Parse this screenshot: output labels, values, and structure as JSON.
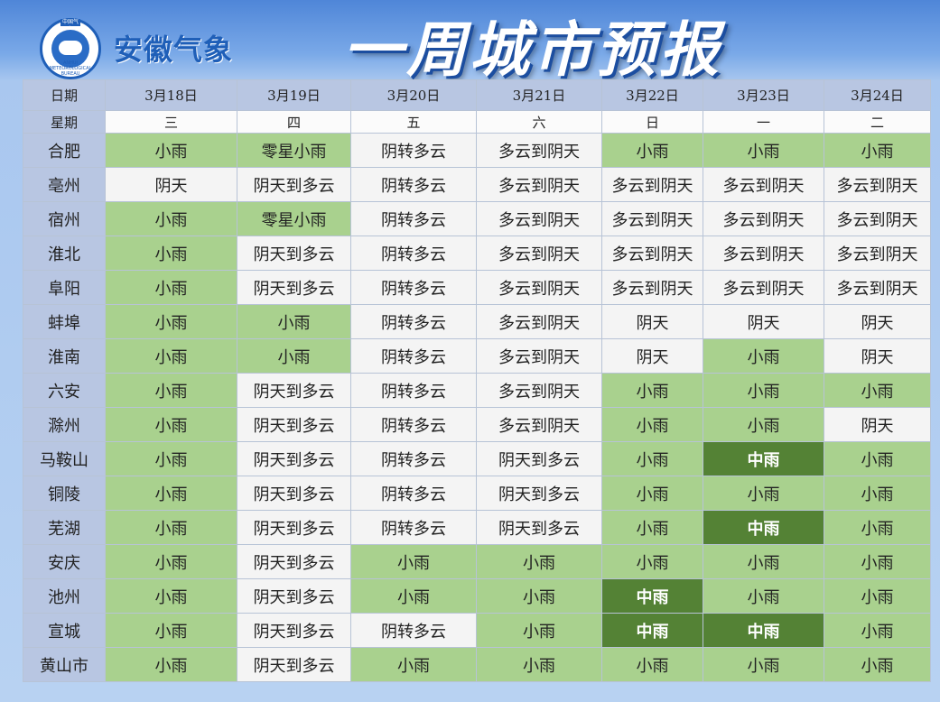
{
  "brand": "安徽气象",
  "title": "一周城市预报",
  "logo": {
    "top_text": "中国气象",
    "ring_text": "ANHUI METEOROLOGICAL BUREAU"
  },
  "colors": {
    "light_rain": "#a9d18e",
    "moderate_rain": "#548235",
    "other": "#f4f4f4",
    "header": "#b8c6e2"
  },
  "table": {
    "date_label": "日期",
    "week_label": "星期",
    "dates": [
      "3月18日",
      "3月19日",
      "3月20日",
      "3月21日",
      "3月22日",
      "3月23日",
      "3月24日"
    ],
    "weekdays": [
      "三",
      "四",
      "五",
      "六",
      "日",
      "一",
      "二"
    ],
    "rows": [
      {
        "city": "合肥",
        "cells": [
          [
            "小雨",
            "l"
          ],
          [
            "零星小雨",
            "l"
          ],
          [
            "阴转多云",
            "w"
          ],
          [
            "多云到阴天",
            "w"
          ],
          [
            "小雨",
            "l"
          ],
          [
            "小雨",
            "l"
          ],
          [
            "小雨",
            "l"
          ]
        ]
      },
      {
        "city": "亳州",
        "cells": [
          [
            "阴天",
            "w"
          ],
          [
            "阴天到多云",
            "w"
          ],
          [
            "阴转多云",
            "w"
          ],
          [
            "多云到阴天",
            "w"
          ],
          [
            "多云到阴天",
            "w"
          ],
          [
            "多云到阴天",
            "w"
          ],
          [
            "多云到阴天",
            "w"
          ]
        ]
      },
      {
        "city": "宿州",
        "cells": [
          [
            "小雨",
            "l"
          ],
          [
            "零星小雨",
            "l"
          ],
          [
            "阴转多云",
            "w"
          ],
          [
            "多云到阴天",
            "w"
          ],
          [
            "多云到阴天",
            "w"
          ],
          [
            "多云到阴天",
            "w"
          ],
          [
            "多云到阴天",
            "w"
          ]
        ]
      },
      {
        "city": "淮北",
        "cells": [
          [
            "小雨",
            "l"
          ],
          [
            "阴天到多云",
            "w"
          ],
          [
            "阴转多云",
            "w"
          ],
          [
            "多云到阴天",
            "w"
          ],
          [
            "多云到阴天",
            "w"
          ],
          [
            "多云到阴天",
            "w"
          ],
          [
            "多云到阴天",
            "w"
          ]
        ]
      },
      {
        "city": "阜阳",
        "cells": [
          [
            "小雨",
            "l"
          ],
          [
            "阴天到多云",
            "w"
          ],
          [
            "阴转多云",
            "w"
          ],
          [
            "多云到阴天",
            "w"
          ],
          [
            "多云到阴天",
            "w"
          ],
          [
            "多云到阴天",
            "w"
          ],
          [
            "多云到阴天",
            "w"
          ]
        ]
      },
      {
        "city": "蚌埠",
        "cells": [
          [
            "小雨",
            "l"
          ],
          [
            "小雨",
            "l"
          ],
          [
            "阴转多云",
            "w"
          ],
          [
            "多云到阴天",
            "w"
          ],
          [
            "阴天",
            "w"
          ],
          [
            "阴天",
            "w"
          ],
          [
            "阴天",
            "w"
          ]
        ]
      },
      {
        "city": "淮南",
        "cells": [
          [
            "小雨",
            "l"
          ],
          [
            "小雨",
            "l"
          ],
          [
            "阴转多云",
            "w"
          ],
          [
            "多云到阴天",
            "w"
          ],
          [
            "阴天",
            "w"
          ],
          [
            "小雨",
            "l"
          ],
          [
            "阴天",
            "w"
          ]
        ]
      },
      {
        "city": "六安",
        "cells": [
          [
            "小雨",
            "l"
          ],
          [
            "阴天到多云",
            "w"
          ],
          [
            "阴转多云",
            "w"
          ],
          [
            "多云到阴天",
            "w"
          ],
          [
            "小雨",
            "l"
          ],
          [
            "小雨",
            "l"
          ],
          [
            "小雨",
            "l"
          ]
        ]
      },
      {
        "city": "滁州",
        "cells": [
          [
            "小雨",
            "l"
          ],
          [
            "阴天到多云",
            "w"
          ],
          [
            "阴转多云",
            "w"
          ],
          [
            "多云到阴天",
            "w"
          ],
          [
            "小雨",
            "l"
          ],
          [
            "小雨",
            "l"
          ],
          [
            "阴天",
            "w"
          ]
        ]
      },
      {
        "city": "马鞍山",
        "cells": [
          [
            "小雨",
            "l"
          ],
          [
            "阴天到多云",
            "w"
          ],
          [
            "阴转多云",
            "w"
          ],
          [
            "阴天到多云",
            "w"
          ],
          [
            "小雨",
            "l"
          ],
          [
            "中雨",
            "d"
          ],
          [
            "小雨",
            "l"
          ]
        ]
      },
      {
        "city": "铜陵",
        "cells": [
          [
            "小雨",
            "l"
          ],
          [
            "阴天到多云",
            "w"
          ],
          [
            "阴转多云",
            "w"
          ],
          [
            "阴天到多云",
            "w"
          ],
          [
            "小雨",
            "l"
          ],
          [
            "小雨",
            "l"
          ],
          [
            "小雨",
            "l"
          ]
        ]
      },
      {
        "city": "芜湖",
        "cells": [
          [
            "小雨",
            "l"
          ],
          [
            "阴天到多云",
            "w"
          ],
          [
            "阴转多云",
            "w"
          ],
          [
            "阴天到多云",
            "w"
          ],
          [
            "小雨",
            "l"
          ],
          [
            "中雨",
            "d"
          ],
          [
            "小雨",
            "l"
          ]
        ]
      },
      {
        "city": "安庆",
        "cells": [
          [
            "小雨",
            "l"
          ],
          [
            "阴天到多云",
            "w"
          ],
          [
            "小雨",
            "l"
          ],
          [
            "小雨",
            "l"
          ],
          [
            "小雨",
            "l"
          ],
          [
            "小雨",
            "l"
          ],
          [
            "小雨",
            "l"
          ]
        ]
      },
      {
        "city": "池州",
        "cells": [
          [
            "小雨",
            "l"
          ],
          [
            "阴天到多云",
            "w"
          ],
          [
            "小雨",
            "l"
          ],
          [
            "小雨",
            "l"
          ],
          [
            "中雨",
            "d"
          ],
          [
            "小雨",
            "l"
          ],
          [
            "小雨",
            "l"
          ]
        ]
      },
      {
        "city": "宣城",
        "cells": [
          [
            "小雨",
            "l"
          ],
          [
            "阴天到多云",
            "w"
          ],
          [
            "阴转多云",
            "w"
          ],
          [
            "小雨",
            "l"
          ],
          [
            "中雨",
            "d"
          ],
          [
            "中雨",
            "d"
          ],
          [
            "小雨",
            "l"
          ]
        ]
      },
      {
        "city": "黄山市",
        "cells": [
          [
            "小雨",
            "l"
          ],
          [
            "阴天到多云",
            "w"
          ],
          [
            "小雨",
            "l"
          ],
          [
            "小雨",
            "l"
          ],
          [
            "小雨",
            "l"
          ],
          [
            "小雨",
            "l"
          ],
          [
            "小雨",
            "l"
          ]
        ]
      }
    ]
  }
}
